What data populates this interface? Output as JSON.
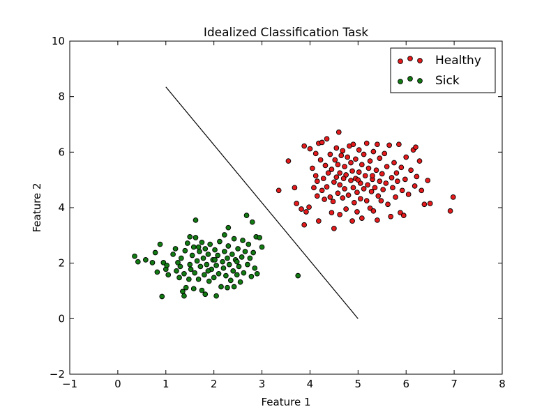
{
  "chart_data": {
    "type": "scatter",
    "title": "Idealized Classification Task",
    "xlabel": "Feature 1",
    "ylabel": "Feature 2",
    "xlim": [
      -1,
      8
    ],
    "ylim": [
      -2,
      10
    ],
    "xticks": [
      "−1",
      "0",
      "1",
      "2",
      "3",
      "4",
      "5",
      "6",
      "7",
      "8"
    ],
    "yticks": [
      "−2",
      "0",
      "2",
      "4",
      "6",
      "8",
      "10"
    ],
    "grid": false,
    "legend_position": "top-right",
    "decision_boundary": {
      "x": [
        1.0,
        5.0
      ],
      "y": [
        8.35,
        0.0
      ],
      "color": "#000000"
    },
    "series": [
      {
        "name": "Healthy",
        "color": "#e41a1c",
        "points": [
          [
            3.35,
            4.62
          ],
          [
            3.55,
            5.68
          ],
          [
            3.68,
            4.72
          ],
          [
            3.72,
            4.15
          ],
          [
            3.82,
            3.95
          ],
          [
            3.88,
            3.38
          ],
          [
            3.88,
            6.22
          ],
          [
            3.92,
            3.85
          ],
          [
            3.98,
            4.02
          ],
          [
            4.0,
            6.12
          ],
          [
            4.05,
            5.42
          ],
          [
            4.08,
            4.72
          ],
          [
            4.12,
            5.15
          ],
          [
            4.12,
            5.95
          ],
          [
            4.15,
            4.42
          ],
          [
            4.15,
            4.95
          ],
          [
            4.18,
            3.52
          ],
          [
            4.18,
            6.32
          ],
          [
            4.22,
            5.72
          ],
          [
            4.25,
            4.62
          ],
          [
            4.25,
            6.35
          ],
          [
            4.28,
            5.05
          ],
          [
            4.3,
            4.3
          ],
          [
            4.32,
            5.52
          ],
          [
            4.35,
            4.75
          ],
          [
            4.35,
            6.48
          ],
          [
            4.38,
            5.25
          ],
          [
            4.42,
            4.38
          ],
          [
            4.42,
            5.92
          ],
          [
            4.45,
            3.82
          ],
          [
            4.45,
            5.38
          ],
          [
            4.48,
            4.22
          ],
          [
            4.5,
            3.25
          ],
          [
            4.5,
            4.92
          ],
          [
            4.52,
            5.72
          ],
          [
            4.55,
            6.15
          ],
          [
            4.58,
            4.52
          ],
          [
            4.58,
            5.55
          ],
          [
            4.6,
            6.72
          ],
          [
            4.62,
            3.75
          ],
          [
            4.62,
            4.82
          ],
          [
            4.62,
            5.25
          ],
          [
            4.65,
            5.88
          ],
          [
            4.68,
            4.35
          ],
          [
            4.68,
            6.05
          ],
          [
            4.72,
            4.68
          ],
          [
            4.72,
            5.48
          ],
          [
            4.75,
            3.95
          ],
          [
            4.75,
            5.18
          ],
          [
            4.78,
            5.82
          ],
          [
            4.8,
            4.45
          ],
          [
            4.82,
            6.22
          ],
          [
            4.85,
            4.98
          ],
          [
            4.85,
            5.62
          ],
          [
            4.88,
            3.52
          ],
          [
            4.88,
            5.32
          ],
          [
            4.9,
            4.72
          ],
          [
            4.9,
            6.28
          ],
          [
            4.92,
            4.18
          ],
          [
            4.95,
            5.05
          ],
          [
            4.95,
            5.75
          ],
          [
            4.98,
            3.85
          ],
          [
            4.98,
            4.55
          ],
          [
            5.02,
            5.28
          ],
          [
            5.02,
            6.08
          ],
          [
            5.05,
            4.32
          ],
          [
            5.05,
            4.88
          ],
          [
            5.08,
            3.62
          ],
          [
            5.08,
            5.55
          ],
          [
            5.12,
            4.68
          ],
          [
            5.12,
            5.92
          ],
          [
            5.15,
            5.15
          ],
          [
            5.18,
            4.25
          ],
          [
            5.18,
            6.32
          ],
          [
            5.2,
            4.82
          ],
          [
            5.22,
            5.42
          ],
          [
            5.25,
            3.98
          ],
          [
            5.25,
            5.68
          ],
          [
            5.28,
            4.58
          ],
          [
            5.3,
            5.02
          ],
          [
            5.32,
            3.88
          ],
          [
            5.32,
            6.02
          ],
          [
            5.35,
            4.72
          ],
          [
            5.38,
            5.35
          ],
          [
            5.4,
            3.55
          ],
          [
            5.4,
            6.28
          ],
          [
            5.42,
            4.42
          ],
          [
            5.45,
            4.95
          ],
          [
            5.45,
            5.78
          ],
          [
            5.48,
            4.25
          ],
          [
            5.5,
            5.22
          ],
          [
            5.52,
            4.65
          ],
          [
            5.55,
            5.95
          ],
          [
            5.58,
            4.88
          ],
          [
            5.6,
            5.48
          ],
          [
            5.62,
            4.12
          ],
          [
            5.65,
            6.25
          ],
          [
            5.68,
            3.68
          ],
          [
            5.7,
            5.08
          ],
          [
            5.72,
            4.72
          ],
          [
            5.75,
            5.62
          ],
          [
            5.78,
            4.38
          ],
          [
            5.8,
            5.25
          ],
          [
            5.82,
            4.95
          ],
          [
            5.85,
            6.28
          ],
          [
            5.88,
            3.82
          ],
          [
            5.9,
            5.45
          ],
          [
            5.92,
            4.62
          ],
          [
            5.95,
            3.72
          ],
          [
            5.98,
            5.02
          ],
          [
            6.0,
            5.82
          ],
          [
            6.05,
            4.48
          ],
          [
            6.1,
            5.35
          ],
          [
            6.15,
            6.08
          ],
          [
            6.18,
            4.78
          ],
          [
            6.2,
            6.18
          ],
          [
            6.22,
            5.12
          ],
          [
            6.28,
            5.68
          ],
          [
            6.32,
            4.62
          ],
          [
            6.38,
            4.12
          ],
          [
            6.45,
            4.98
          ],
          [
            6.5,
            4.15
          ],
          [
            6.92,
            3.88
          ],
          [
            6.98,
            4.38
          ],
          [
            4.7,
            5.05
          ],
          [
            5.0,
            5.0
          ],
          [
            5.3,
            5.15
          ],
          [
            4.55,
            5.1
          ]
        ]
      },
      {
        "name": "Sick",
        "color": "#127a12",
        "points": [
          [
            0.35,
            2.25
          ],
          [
            0.42,
            2.05
          ],
          [
            0.58,
            2.12
          ],
          [
            0.72,
            2.02
          ],
          [
            0.78,
            2.38
          ],
          [
            0.82,
            1.68
          ],
          [
            0.88,
            2.68
          ],
          [
            0.92,
            0.8
          ],
          [
            0.95,
            2.02
          ],
          [
            1.0,
            1.78
          ],
          [
            1.02,
            1.92
          ],
          [
            1.05,
            1.58
          ],
          [
            1.15,
            2.32
          ],
          [
            1.2,
            2.52
          ],
          [
            1.22,
            1.72
          ],
          [
            1.25,
            2.02
          ],
          [
            1.28,
            1.48
          ],
          [
            1.3,
            1.88
          ],
          [
            1.32,
            2.18
          ],
          [
            1.35,
            0.98
          ],
          [
            1.38,
            0.82
          ],
          [
            1.38,
            1.62
          ],
          [
            1.4,
            2.45
          ],
          [
            1.42,
            1.12
          ],
          [
            1.45,
            2.72
          ],
          [
            1.48,
            1.42
          ],
          [
            1.5,
            1.95
          ],
          [
            1.5,
            2.95
          ],
          [
            1.52,
            1.78
          ],
          [
            1.55,
            2.28
          ],
          [
            1.58,
            1.08
          ],
          [
            1.58,
            2.58
          ],
          [
            1.6,
            1.65
          ],
          [
            1.62,
            2.92
          ],
          [
            1.62,
            3.55
          ],
          [
            1.65,
            2.08
          ],
          [
            1.68,
            1.42
          ],
          [
            1.7,
            2.42
          ],
          [
            1.72,
            1.88
          ],
          [
            1.75,
            2.75
          ],
          [
            1.75,
            1.02
          ],
          [
            1.78,
            2.18
          ],
          [
            1.8,
            1.58
          ],
          [
            1.82,
            2.52
          ],
          [
            1.82,
            0.88
          ],
          [
            1.85,
            1.95
          ],
          [
            1.88,
            2.32
          ],
          [
            1.9,
            1.35
          ],
          [
            1.92,
            2.68
          ],
          [
            1.95,
            1.78
          ],
          [
            1.98,
            2.12
          ],
          [
            2.0,
            1.48
          ],
          [
            2.02,
            2.48
          ],
          [
            2.05,
            1.92
          ],
          [
            2.05,
            0.82
          ],
          [
            2.08,
            2.28
          ],
          [
            2.1,
            1.62
          ],
          [
            2.12,
            2.78
          ],
          [
            2.15,
            1.15
          ],
          [
            2.18,
            2.05
          ],
          [
            2.2,
            1.82
          ],
          [
            2.22,
            2.42
          ],
          [
            2.22,
            3.02
          ],
          [
            2.25,
            1.55
          ],
          [
            2.28,
            2.18
          ],
          [
            2.28,
            1.12
          ],
          [
            2.3,
            2.62
          ],
          [
            2.32,
            1.95
          ],
          [
            2.35,
            1.38
          ],
          [
            2.38,
            2.32
          ],
          [
            2.4,
            1.72
          ],
          [
            2.42,
            2.88
          ],
          [
            2.42,
            1.15
          ],
          [
            2.45,
            2.12
          ],
          [
            2.48,
            1.58
          ],
          [
            2.5,
            2.52
          ],
          [
            2.52,
            1.88
          ],
          [
            2.55,
            1.32
          ],
          [
            2.58,
            2.22
          ],
          [
            2.6,
            2.82
          ],
          [
            2.62,
            1.65
          ],
          [
            2.65,
            2.42
          ],
          [
            2.68,
            3.72
          ],
          [
            2.7,
            1.95
          ],
          [
            2.72,
            2.68
          ],
          [
            2.75,
            2.18
          ],
          [
            2.78,
            1.52
          ],
          [
            2.8,
            3.48
          ],
          [
            2.82,
            2.38
          ],
          [
            2.85,
            1.82
          ],
          [
            2.88,
            2.95
          ],
          [
            2.9,
            1.62
          ],
          [
            2.95,
            2.92
          ],
          [
            3.0,
            2.58
          ],
          [
            2.3,
            3.28
          ],
          [
            3.75,
            1.55
          ],
          [
            1.68,
            2.58
          ],
          [
            2.02,
            2.12
          ],
          [
            2.48,
            2.05
          ],
          [
            1.88,
            1.72
          ]
        ]
      }
    ]
  }
}
